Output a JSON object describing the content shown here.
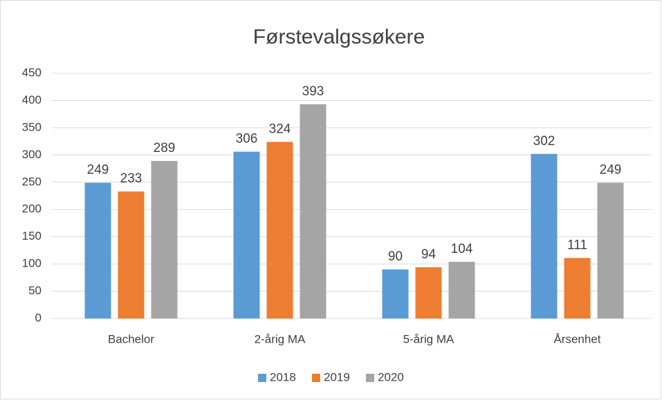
{
  "chart_data": {
    "type": "bar",
    "title": "Førstevalgssøkere",
    "categories": [
      "Bachelor",
      "2-årig MA",
      "5-årig MA",
      "Årsenhet"
    ],
    "series": [
      {
        "name": "2018",
        "color": "#5b9bd5",
        "values": [
          249,
          306,
          90,
          302
        ]
      },
      {
        "name": "2019",
        "color": "#ed7d31",
        "values": [
          233,
          324,
          94,
          111
        ]
      },
      {
        "name": "2020",
        "color": "#a5a5a5",
        "values": [
          289,
          393,
          104,
          249
        ]
      }
    ],
    "ylim": [
      0,
      450
    ],
    "yticks": [
      0,
      50,
      100,
      150,
      200,
      250,
      300,
      350,
      400,
      450
    ],
    "grid": true,
    "legend": "bottom",
    "data_labels": true
  }
}
